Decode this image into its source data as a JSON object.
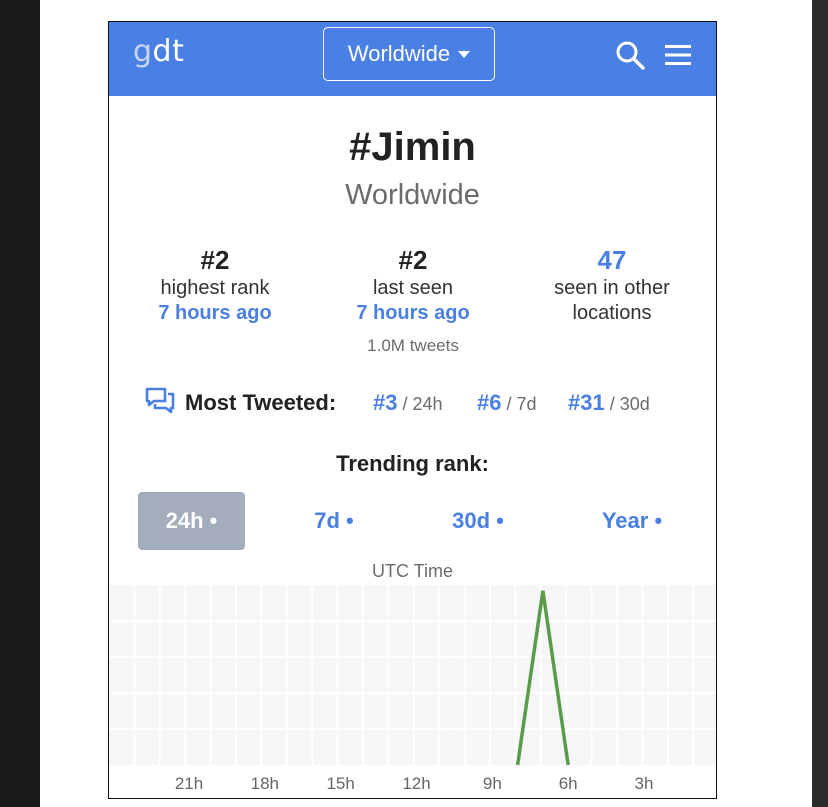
{
  "header": {
    "logo_prefix": "g",
    "logo_suffix": "dt",
    "location_button": "Worldwide"
  },
  "hashtag": {
    "title": "#Jimin",
    "location": "Worldwide"
  },
  "stats": [
    {
      "value": "#2",
      "label": "highest rank",
      "time": "7 hours ago"
    },
    {
      "value": "#2",
      "label": "last seen",
      "time": "7 hours ago",
      "extra": "1.0M tweets"
    },
    {
      "value": "47",
      "label_line1": "seen in other",
      "label_line2": "locations"
    }
  ],
  "most_tweeted": {
    "label": "Most Tweeted:",
    "ranks": [
      {
        "value": "#3",
        "period": " / 24h"
      },
      {
        "value": "#6",
        "period": " / 7d"
      },
      {
        "value": "#31",
        "period": " / 30d"
      }
    ]
  },
  "trending": {
    "title": "Trending rank:",
    "tabs": [
      "24h •",
      "7d •",
      "30d •",
      "Year •"
    ],
    "active_tab": 0,
    "axis_label": "UTC Time"
  },
  "chart_data": {
    "type": "line",
    "xlabel": "UTC Time",
    "x_ticks": [
      "21h",
      "18h",
      "15h",
      "12h",
      "9h",
      "6h",
      "3h"
    ],
    "series": [
      {
        "color": "#5a9b4a",
        "points": [
          {
            "hours_ago": 8.0,
            "rank": 100
          },
          {
            "hours_ago": 7.0,
            "rank": 2
          },
          {
            "hours_ago": 6.0,
            "rank": 100
          }
        ]
      }
    ],
    "grid": true,
    "colors": {
      "grid_bg": "#f6f6f6",
      "grid_line": "#ffffff"
    }
  }
}
